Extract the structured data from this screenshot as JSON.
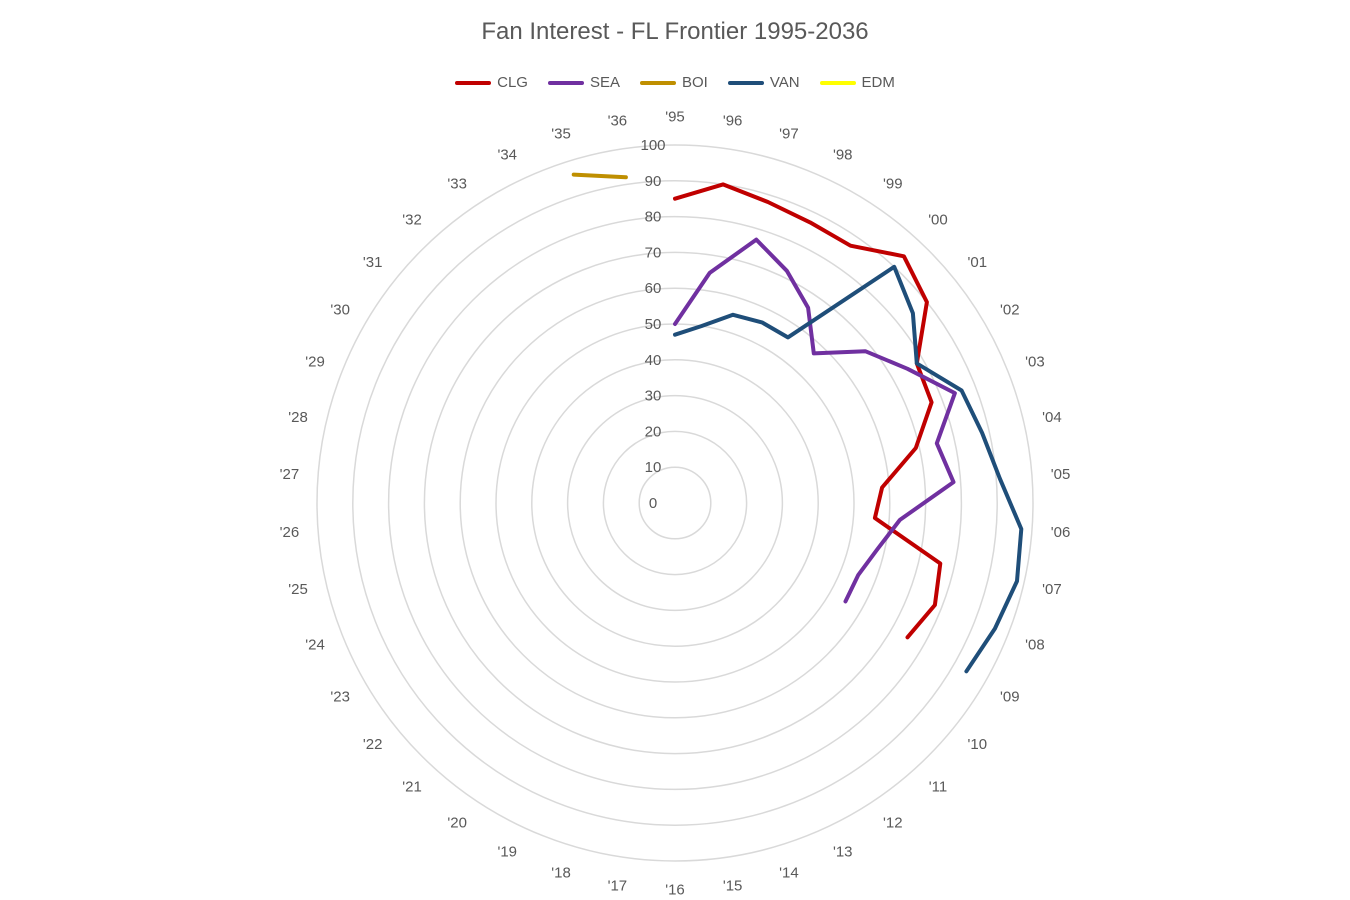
{
  "chart_data": {
    "type": "radar",
    "title": "Fan Interest - FL Frontier 1995-2036",
    "categories": [
      "'95",
      "'96",
      "'97",
      "'98",
      "'99",
      "'00",
      "'01",
      "'02",
      "'03",
      "'04",
      "'05",
      "'06",
      "'07",
      "'08",
      "'09",
      "'10",
      "'11",
      "'12",
      "'13",
      "'14",
      "'15",
      "'16",
      "'17",
      "'18",
      "'19",
      "'20",
      "'21",
      "'22",
      "'23",
      "'24",
      "'25",
      "'26",
      "'27",
      "'28",
      "'29",
      "'30",
      "'31",
      "'32",
      "'33",
      "'34",
      "'35",
      "'36"
    ],
    "r_ticks": [
      0,
      10,
      20,
      30,
      40,
      50,
      60,
      70,
      80,
      90,
      100
    ],
    "rlim": [
      0,
      100
    ],
    "grid": true,
    "legend_position": "top",
    "series": [
      {
        "name": "CLG",
        "color": "#C00000",
        "values": [
          85,
          90,
          88,
          87,
          87,
          94,
          90,
          78,
          77,
          69,
          58,
          56,
          76,
          78,
          75,
          null,
          null,
          null,
          null,
          null,
          null,
          null,
          null,
          null,
          null,
          null,
          null,
          null,
          null,
          null,
          null,
          null,
          null,
          null,
          null,
          null,
          null,
          null,
          null,
          null,
          null,
          null
        ]
      },
      {
        "name": "SEA",
        "color": "#7030A0",
        "values": [
          50,
          65,
          77,
          72,
          66,
          57,
          68,
          75,
          84,
          75,
          78,
          63,
          58,
          55,
          55,
          null,
          null,
          null,
          null,
          null,
          null,
          null,
          null,
          null,
          null,
          null,
          null,
          null,
          null,
          null,
          null,
          null,
          null,
          null,
          null,
          null,
          null,
          null,
          null,
          null,
          null,
          null
        ]
      },
      {
        "name": "BOI",
        "color": "#BF8F00",
        "values": [
          null,
          null,
          null,
          null,
          null,
          null,
          null,
          null,
          null,
          null,
          null,
          null,
          null,
          null,
          null,
          null,
          null,
          null,
          null,
          null,
          null,
          null,
          null,
          null,
          null,
          null,
          null,
          null,
          null,
          null,
          null,
          null,
          null,
          null,
          null,
          null,
          null,
          null,
          null,
          null,
          96,
          92
        ]
      },
      {
        "name": "VAN",
        "color": "#1F4E79",
        "values": [
          47,
          50,
          55,
          56,
          56,
          90,
          85,
          78,
          86,
          88,
          91,
          97,
          98,
          96,
          94,
          null,
          null,
          null,
          null,
          null,
          null,
          null,
          null,
          null,
          null,
          null,
          null,
          null,
          null,
          null,
          null,
          null,
          null,
          null,
          null,
          null,
          null,
          null,
          null,
          null,
          null,
          null
        ]
      },
      {
        "name": "EDM",
        "color": "#FFFF00",
        "values": [
          null,
          null,
          null,
          null,
          null,
          null,
          null,
          null,
          null,
          null,
          null,
          null,
          null,
          null,
          null,
          null,
          null,
          null,
          null,
          null,
          null,
          null,
          null,
          null,
          null,
          null,
          null,
          null,
          null,
          null,
          null,
          null,
          null,
          null,
          null,
          null,
          null,
          null,
          null,
          null,
          null,
          null
        ]
      }
    ]
  }
}
